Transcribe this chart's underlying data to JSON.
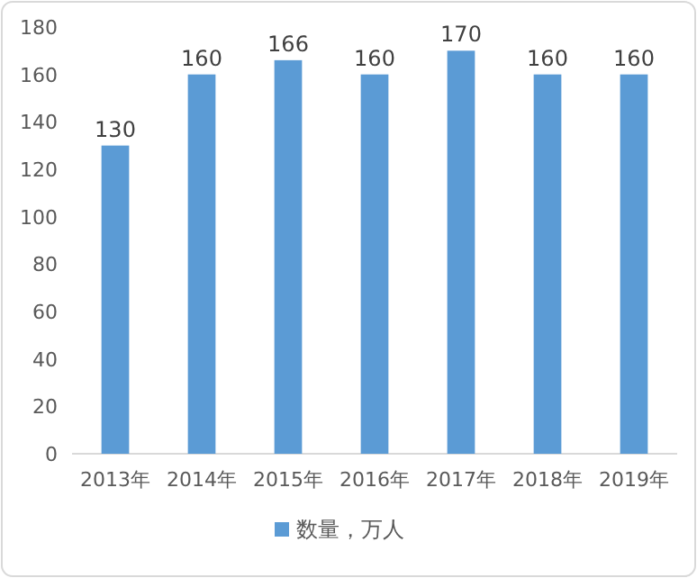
{
  "chart_data": {
    "type": "bar",
    "categories": [
      "2013年",
      "2014年",
      "2015年",
      "2016年",
      "2017年",
      "2018年",
      "2019年"
    ],
    "series": [
      {
        "name": "数量，万人",
        "color": "#5b9bd5",
        "values": [
          130,
          160,
          166,
          160,
          170,
          160,
          160
        ]
      }
    ],
    "ylim": [
      0,
      180
    ],
    "yticks": [
      0,
      20,
      40,
      60,
      80,
      100,
      120,
      140,
      160,
      180
    ],
    "data_labels": true,
    "legend": "bottom"
  }
}
